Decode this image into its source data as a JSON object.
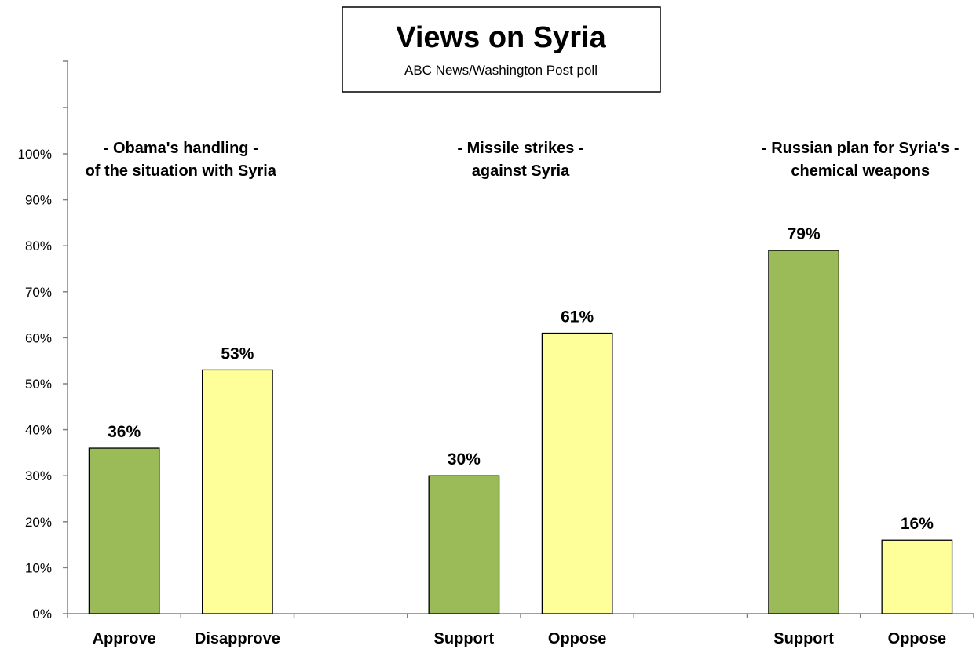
{
  "chart_data": {
    "type": "bar",
    "title": "Views on Syria",
    "subtitle": "ABC News/Washington Post poll",
    "ylim": [
      0,
      100
    ],
    "y_ticks": [
      "0%",
      "10%",
      "20%",
      "30%",
      "40%",
      "50%",
      "60%",
      "70%",
      "80%",
      "90%",
      "100%"
    ],
    "grid": false,
    "groups": [
      {
        "label_lines": [
          "- Obama's handling -",
          "of the situation with Syria"
        ],
        "bars": [
          {
            "category": "Approve",
            "value": 36,
            "label": "36%",
            "color": "#9bbb59"
          },
          {
            "category": "Disapprove",
            "value": 53,
            "label": "53%",
            "color": "#ffff99"
          }
        ]
      },
      {
        "label_lines": [
          "- Missile strikes -",
          "against Syria"
        ],
        "bars": [
          {
            "category": "Support",
            "value": 30,
            "label": "30%",
            "color": "#9bbb59"
          },
          {
            "category": "Oppose",
            "value": 61,
            "label": "61%",
            "color": "#ffff99"
          }
        ]
      },
      {
        "label_lines": [
          "- Russian plan  for  Syria's -",
          "chemical weapons"
        ],
        "bars": [
          {
            "category": "Support",
            "value": 79,
            "label": "79%",
            "color": "#9bbb59"
          },
          {
            "category": "Oppose",
            "value": 16,
            "label": "16%",
            "color": "#ffff99"
          }
        ]
      }
    ]
  }
}
